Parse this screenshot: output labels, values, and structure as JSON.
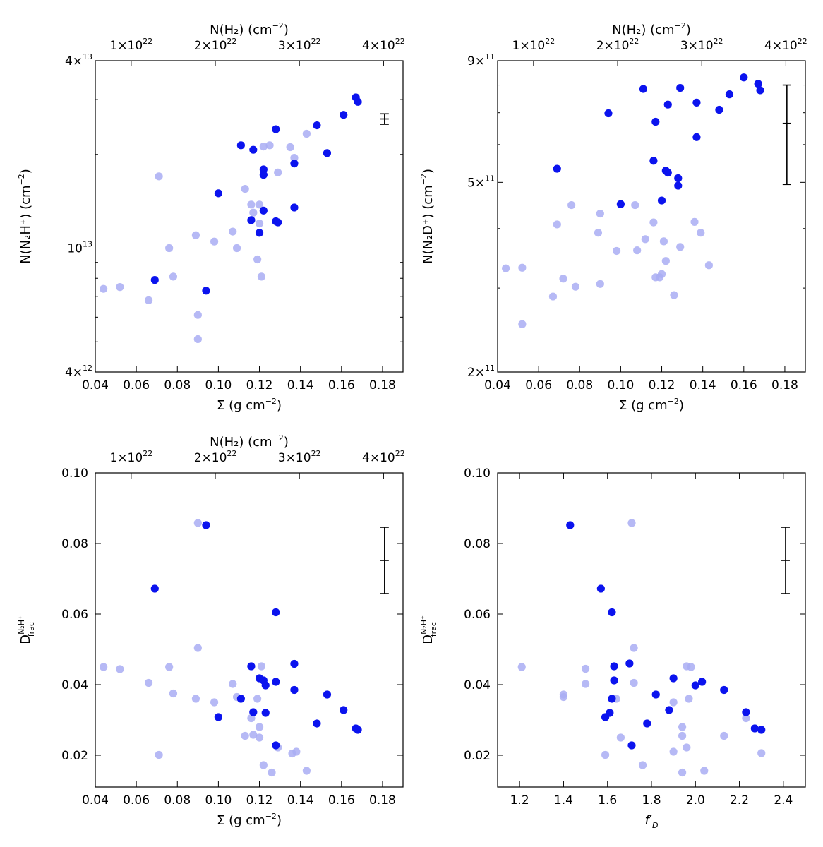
{
  "colors": {
    "light": "#a9adf3",
    "dark": "#0b13ee",
    "axis": "#000000"
  },
  "chart_data": [
    {
      "id": "p1",
      "type": "scatter",
      "yscale": "log",
      "xlim": [
        0.04,
        0.19
      ],
      "ylim": [
        4000000000000.0,
        40000000000000.0
      ],
      "xticks": [
        0.04,
        0.06,
        0.08,
        0.1,
        0.12,
        0.14,
        0.16,
        0.18
      ],
      "xtick_labels": [
        "0.04",
        "0.06",
        "0.08",
        "0.10",
        "0.12",
        "0.14",
        "0.16",
        "0.18"
      ],
      "yticks_major": [
        4000000000000.0,
        10000000000000.0,
        40000000000000.0
      ],
      "ytick_mant": [
        "4",
        "10",
        "4"
      ],
      "ytick_exp": [
        "12",
        "13",
        "13"
      ],
      "ytick_times": [
        true,
        false,
        true
      ],
      "yticks_minor": [
        5000000000000.0,
        6000000000000.0,
        7000000000000.0,
        8000000000000.0,
        9000000000000.0,
        20000000000000.0,
        30000000000000.0
      ],
      "xlabel": "Σ  (g cm",
      "xlabel_sup": "−2",
      "xlabel_end": ")",
      "ylabel": "N(N₂H⁺) (cm",
      "ylabel_sup": "−2",
      "ylabel_end": ")",
      "top_axis": {
        "label": "N(H₂) (cm",
        "label_sup": "−2",
        "label_end": ")",
        "ticks": [
          0.0575,
          0.0985,
          0.1395,
          0.1805
        ],
        "mant": [
          "1",
          "2",
          "3",
          "4"
        ],
        "exp": [
          "22",
          "22",
          "22",
          "22"
        ]
      },
      "errorbar": {
        "x": 0.181,
        "y": 26000000000000.0,
        "ylow": 25000000000000.0,
        "yhigh": 27000000000000.0
      },
      "light": [
        [
          0.044,
          7400000000000.0
        ],
        [
          0.052,
          7500000000000.0
        ],
        [
          0.066,
          6800000000000.0
        ],
        [
          0.071,
          17000000000000.0
        ],
        [
          0.076,
          10000000000000.0
        ],
        [
          0.078,
          8100000000000.0
        ],
        [
          0.089,
          11000000000000.0
        ],
        [
          0.09,
          6100000000000.0
        ],
        [
          0.09,
          5100000000000.0
        ],
        [
          0.098,
          10500000000000.0
        ],
        [
          0.107,
          11300000000000.0
        ],
        [
          0.109,
          10000000000000.0
        ],
        [
          0.113,
          15500000000000.0
        ],
        [
          0.116,
          13800000000000.0
        ],
        [
          0.117,
          13000000000000.0
        ],
        [
          0.119,
          9200000000000.0
        ],
        [
          0.12,
          12000000000000.0
        ],
        [
          0.12,
          13800000000000.0
        ],
        [
          0.121,
          8100000000000.0
        ],
        [
          0.122,
          21200000000000.0
        ],
        [
          0.125,
          21400000000000.0
        ],
        [
          0.129,
          17500000000000.0
        ],
        [
          0.135,
          21100000000000.0
        ],
        [
          0.137,
          19500000000000.0
        ],
        [
          0.143,
          23300000000000.0
        ]
      ],
      "dark": [
        [
          0.069,
          7900000000000.0
        ],
        [
          0.094,
          7300000000000.0
        ],
        [
          0.1,
          15000000000000.0
        ],
        [
          0.111,
          21400000000000.0
        ],
        [
          0.116,
          12300000000000.0
        ],
        [
          0.117,
          20700000000000.0
        ],
        [
          0.12,
          11200000000000.0
        ],
        [
          0.122,
          13200000000000.0
        ],
        [
          0.122,
          17900000000000.0
        ],
        [
          0.122,
          17200000000000.0
        ],
        [
          0.128,
          12200000000000.0
        ],
        [
          0.128,
          24100000000000.0
        ],
        [
          0.129,
          12100000000000.0
        ],
        [
          0.137,
          18700000000000.0
        ],
        [
          0.137,
          13500000000000.0
        ],
        [
          0.148,
          24800000000000.0
        ],
        [
          0.153,
          20200000000000.0
        ],
        [
          0.161,
          26800000000000.0
        ],
        [
          0.167,
          30500000000000.0
        ],
        [
          0.168,
          29500000000000.0
        ]
      ]
    },
    {
      "id": "p2",
      "type": "scatter",
      "yscale": "log",
      "xlim": [
        0.04,
        0.19
      ],
      "ylim": [
        200000000000.0,
        900000000000.0
      ],
      "xticks": [
        0.04,
        0.06,
        0.08,
        0.1,
        0.12,
        0.14,
        0.16,
        0.18
      ],
      "xtick_labels": [
        "0.04",
        "0.06",
        "0.08",
        "0.10",
        "0.12",
        "0.14",
        "0.16",
        "0.18"
      ],
      "yticks_major": [
        200000000000.0,
        500000000000.0,
        900000000000.0
      ],
      "ytick_mant": [
        "2",
        "5",
        "9"
      ],
      "ytick_exp": [
        "11",
        "11",
        "11"
      ],
      "ytick_times": [
        true,
        true,
        true
      ],
      "yticks_minor": [
        300000000000.0,
        400000000000.0,
        600000000000.0,
        700000000000.0,
        800000000000.0
      ],
      "xlabel": "Σ  (g cm",
      "xlabel_sup": "−2",
      "xlabel_end": ")",
      "ylabel": "N(N₂D⁺) (cm",
      "ylabel_sup": "−2",
      "ylabel_end": ")",
      "top_axis": {
        "label": "N(H₂) (cm",
        "label_sup": "−2",
        "label_end": ")",
        "ticks": [
          0.0575,
          0.0985,
          0.1395,
          0.1805
        ],
        "mant": [
          "1",
          "2",
          "3",
          "4"
        ],
        "exp": [
          "22",
          "22",
          "22",
          "22"
        ]
      },
      "errorbar": {
        "x": 0.181,
        "y": 665000000000.0,
        "ylow": 495000000000.0,
        "yhigh": 800000000000.0
      },
      "light": [
        [
          0.044,
          330000000000.0
        ],
        [
          0.052,
          331000000000.0
        ],
        [
          0.052,
          252000000000.0
        ],
        [
          0.067,
          288000000000.0
        ],
        [
          0.069,
          408000000000.0
        ],
        [
          0.072,
          314000000000.0
        ],
        [
          0.076,
          448000000000.0
        ],
        [
          0.078,
          302000000000.0
        ],
        [
          0.089,
          392000000000.0
        ],
        [
          0.09,
          430000000000.0
        ],
        [
          0.09,
          306000000000.0
        ],
        [
          0.098,
          359000000000.0
        ],
        [
          0.107,
          448000000000.0
        ],
        [
          0.108,
          360000000000.0
        ],
        [
          0.112,
          380000000000.0
        ],
        [
          0.116,
          412000000000.0
        ],
        [
          0.117,
          316000000000.0
        ],
        [
          0.119,
          316000000000.0
        ],
        [
          0.12,
          321000000000.0
        ],
        [
          0.121,
          376000000000.0
        ],
        [
          0.122,
          342000000000.0
        ],
        [
          0.126,
          290000000000.0
        ],
        [
          0.129,
          366000000000.0
        ],
        [
          0.136,
          413000000000.0
        ],
        [
          0.139,
          392000000000.0
        ],
        [
          0.143,
          335000000000.0
        ]
      ],
      "dark": [
        [
          0.069,
          534000000000.0
        ],
        [
          0.094,
          698000000000.0
        ],
        [
          0.1,
          450000000000.0
        ],
        [
          0.111,
          785000000000.0
        ],
        [
          0.116,
          555000000000.0
        ],
        [
          0.117,
          670000000000.0
        ],
        [
          0.12,
          458000000000.0
        ],
        [
          0.122,
          529000000000.0
        ],
        [
          0.123,
          728000000000.0
        ],
        [
          0.123,
          524000000000.0
        ],
        [
          0.128,
          492000000000.0
        ],
        [
          0.128,
          510000000000.0
        ],
        [
          0.129,
          789000000000.0
        ],
        [
          0.137,
          735000000000.0
        ],
        [
          0.137,
          622000000000.0
        ],
        [
          0.148,
          710000000000.0
        ],
        [
          0.153,
          765000000000.0
        ],
        [
          0.16,
          830000000000.0
        ],
        [
          0.167,
          805000000000.0
        ],
        [
          0.168,
          780000000000.0
        ]
      ]
    },
    {
      "id": "p3",
      "type": "scatter",
      "yscale": "linear",
      "xlim": [
        0.04,
        0.19
      ],
      "ylim": [
        0.011,
        0.1
      ],
      "xticks": [
        0.04,
        0.06,
        0.08,
        0.1,
        0.12,
        0.14,
        0.16,
        0.18
      ],
      "xtick_labels": [
        "0.04",
        "0.06",
        "0.08",
        "0.10",
        "0.12",
        "0.14",
        "0.16",
        "0.18"
      ],
      "yticks": [
        0.02,
        0.04,
        0.06,
        0.08,
        0.1
      ],
      "ytick_labels": [
        "0.02",
        "0.04",
        "0.06",
        "0.08",
        "0.10"
      ],
      "xlabel": "Σ  (g cm",
      "xlabel_sup": "−2",
      "xlabel_end": ")",
      "ylabel": "D",
      "ylabel_sub": "frac",
      "ylabel_sup": "N₂H⁺",
      "top_axis": {
        "label": "N(H₂) (cm",
        "label_sup": "−2",
        "label_end": ")",
        "ticks": [
          0.0575,
          0.0985,
          0.1395,
          0.1805
        ],
        "mant": [
          "1",
          "2",
          "3",
          "4"
        ],
        "exp": [
          "22",
          "22",
          "22",
          "22"
        ]
      },
      "errorbar": {
        "x": 0.181,
        "y": 0.0752,
        "ylow": 0.0658,
        "yhigh": 0.0846
      },
      "light": [
        [
          0.044,
          0.045
        ],
        [
          0.052,
          0.0444
        ],
        [
          0.066,
          0.0405
        ],
        [
          0.071,
          0.0201
        ],
        [
          0.076,
          0.045
        ],
        [
          0.078,
          0.0375
        ],
        [
          0.089,
          0.036
        ],
        [
          0.09,
          0.0504
        ],
        [
          0.09,
          0.0858
        ],
        [
          0.098,
          0.035
        ],
        [
          0.107,
          0.0402
        ],
        [
          0.109,
          0.0365
        ],
        [
          0.113,
          0.0255
        ],
        [
          0.116,
          0.0305
        ],
        [
          0.117,
          0.0258
        ],
        [
          0.119,
          0.036
        ],
        [
          0.12,
          0.028
        ],
        [
          0.12,
          0.025
        ],
        [
          0.121,
          0.0452
        ],
        [
          0.122,
          0.0172
        ],
        [
          0.126,
          0.0151
        ],
        [
          0.129,
          0.0222
        ],
        [
          0.136,
          0.0205
        ],
        [
          0.138,
          0.021
        ],
        [
          0.143,
          0.0156
        ]
      ],
      "dark": [
        [
          0.069,
          0.0672
        ],
        [
          0.094,
          0.0852
        ],
        [
          0.1,
          0.0308
        ],
        [
          0.111,
          0.036
        ],
        [
          0.116,
          0.0452
        ],
        [
          0.117,
          0.0322
        ],
        [
          0.12,
          0.0418
        ],
        [
          0.122,
          0.0412
        ],
        [
          0.123,
          0.0398
        ],
        [
          0.123,
          0.032
        ],
        [
          0.128,
          0.0408
        ],
        [
          0.128,
          0.0605
        ],
        [
          0.128,
          0.0228
        ],
        [
          0.137,
          0.0459
        ],
        [
          0.137,
          0.0385
        ],
        [
          0.148,
          0.029
        ],
        [
          0.153,
          0.0372
        ],
        [
          0.161,
          0.0328
        ],
        [
          0.167,
          0.0276
        ],
        [
          0.168,
          0.0272
        ]
      ]
    },
    {
      "id": "p4",
      "type": "scatter",
      "yscale": "linear",
      "xlim": [
        1.1,
        2.5
      ],
      "ylim": [
        0.011,
        0.1
      ],
      "xticks": [
        1.2,
        1.4,
        1.6,
        1.8,
        2.0,
        2.2,
        2.4
      ],
      "xtick_labels": [
        "1.2",
        "1.4",
        "1.6",
        "1.8",
        "2.0",
        "2.2",
        "2.4"
      ],
      "yticks": [
        0.02,
        0.04,
        0.06,
        0.08,
        0.1
      ],
      "ytick_labels": [
        "0.02",
        "0.04",
        "0.06",
        "0.08",
        "0.10"
      ],
      "xlabel_f": "f",
      "xlabel_prime": "′",
      "xlabel_sub": "D",
      "ylabel": "D",
      "ylabel_sub": "frac",
      "ylabel_sup": "N₂H⁺",
      "errorbar": {
        "x": 2.41,
        "y": 0.0752,
        "ylow": 0.0658,
        "yhigh": 0.0846
      },
      "light": [
        [
          1.21,
          0.045
        ],
        [
          1.4,
          0.0372
        ],
        [
          1.4,
          0.0365
        ],
        [
          1.5,
          0.0445
        ],
        [
          1.5,
          0.0402
        ],
        [
          1.59,
          0.0201
        ],
        [
          1.64,
          0.036
        ],
        [
          1.66,
          0.025
        ],
        [
          1.71,
          0.0858
        ],
        [
          1.72,
          0.0504
        ],
        [
          1.72,
          0.0405
        ],
        [
          1.76,
          0.0172
        ],
        [
          1.9,
          0.035
        ],
        [
          1.9,
          0.021
        ],
        [
          1.94,
          0.028
        ],
        [
          1.94,
          0.0255
        ],
        [
          1.94,
          0.0151
        ],
        [
          1.96,
          0.0452
        ],
        [
          1.96,
          0.0222
        ],
        [
          1.97,
          0.036
        ],
        [
          1.98,
          0.045
        ],
        [
          2.04,
          0.0156
        ],
        [
          2.13,
          0.0255
        ],
        [
          2.23,
          0.0305
        ],
        [
          2.3,
          0.0206
        ]
      ],
      "dark": [
        [
          1.43,
          0.0852
        ],
        [
          1.57,
          0.0672
        ],
        [
          1.59,
          0.0308
        ],
        [
          1.61,
          0.032
        ],
        [
          1.62,
          0.036
        ],
        [
          1.62,
          0.0605
        ],
        [
          1.63,
          0.0412
        ],
        [
          1.63,
          0.0452
        ],
        [
          1.7,
          0.046
        ],
        [
          1.71,
          0.0228
        ],
        [
          1.78,
          0.029
        ],
        [
          1.82,
          0.0372
        ],
        [
          1.88,
          0.0328
        ],
        [
          1.9,
          0.0418
        ],
        [
          2.0,
          0.0398
        ],
        [
          2.03,
          0.0408
        ],
        [
          2.13,
          0.0385
        ],
        [
          2.23,
          0.0322
        ],
        [
          2.27,
          0.0276
        ],
        [
          2.3,
          0.0272
        ]
      ]
    }
  ]
}
